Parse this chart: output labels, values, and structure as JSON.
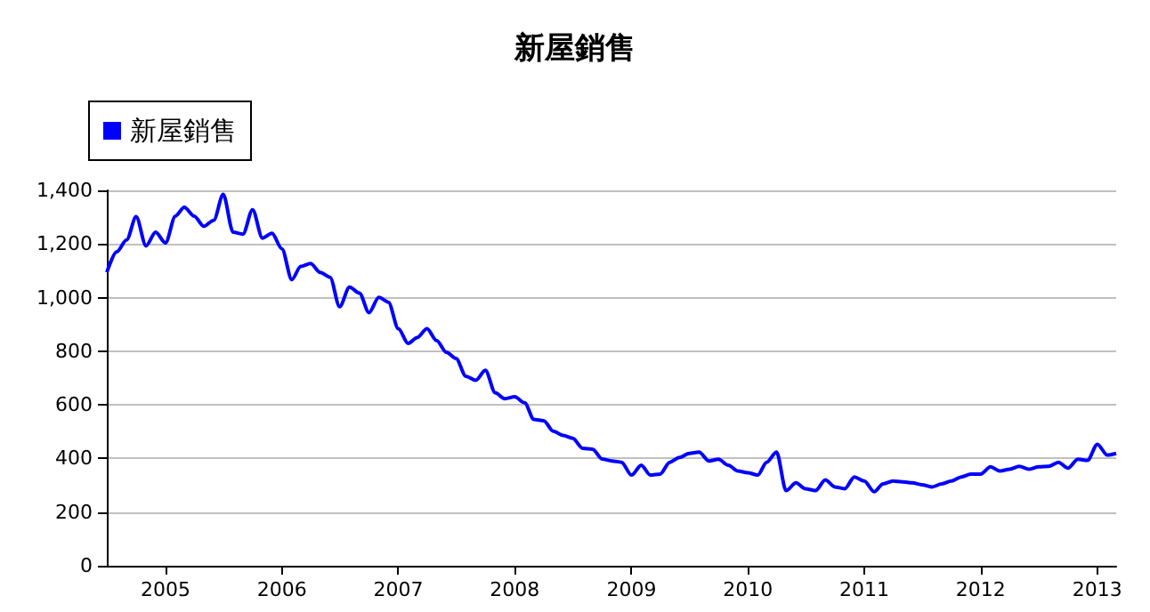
{
  "chart_data": {
    "type": "line",
    "title": "新屋銷售",
    "x": [
      "2004-07",
      "2004-08",
      "2004-09",
      "2004-10",
      "2004-11",
      "2004-12",
      "2005-01",
      "2005-02",
      "2005-03",
      "2005-04",
      "2005-05",
      "2005-06",
      "2005-07",
      "2005-08",
      "2005-09",
      "2005-10",
      "2005-11",
      "2005-12",
      "2006-01",
      "2006-02",
      "2006-03",
      "2006-04",
      "2006-05",
      "2006-06",
      "2006-07",
      "2006-08",
      "2006-09",
      "2006-10",
      "2006-11",
      "2006-12",
      "2007-01",
      "2007-02",
      "2007-03",
      "2007-04",
      "2007-05",
      "2007-06",
      "2007-07",
      "2007-08",
      "2007-09",
      "2007-10",
      "2007-11",
      "2007-12",
      "2008-01",
      "2008-02",
      "2008-03",
      "2008-04",
      "2008-05",
      "2008-06",
      "2008-07",
      "2008-08",
      "2008-09",
      "2008-10",
      "2008-11",
      "2008-12",
      "2009-01",
      "2009-02",
      "2009-03",
      "2009-04",
      "2009-05",
      "2009-06",
      "2009-07",
      "2009-08",
      "2009-09",
      "2009-10",
      "2009-11",
      "2009-12",
      "2010-01",
      "2010-02",
      "2010-03",
      "2010-04",
      "2010-05",
      "2010-06",
      "2010-07",
      "2010-08",
      "2010-09",
      "2010-10",
      "2010-11",
      "2010-12",
      "2011-01",
      "2011-02",
      "2011-03",
      "2011-04",
      "2011-05",
      "2011-06",
      "2011-07",
      "2011-08",
      "2011-09",
      "2011-10",
      "2011-11",
      "2011-12",
      "2012-01",
      "2012-02",
      "2012-03",
      "2012-04",
      "2012-05",
      "2012-06",
      "2012-07",
      "2012-08",
      "2012-09",
      "2012-10",
      "2012-11",
      "2012-12",
      "2013-01",
      "2013-02",
      "2013-03"
    ],
    "series": [
      {
        "name": "新屋銷售",
        "color": "#0000ff",
        "values": [
          1094,
          1171,
          1215,
          1302,
          1193,
          1244,
          1204,
          1304,
          1337,
          1304,
          1266,
          1288,
          1385,
          1244,
          1237,
          1328,
          1222,
          1240,
          1182,
          1067,
          1116,
          1127,
          1094,
          1076,
          966,
          1039,
          1017,
          944,
          1001,
          983,
          884,
          829,
          851,
          884,
          840,
          796,
          773,
          707,
          692,
          729,
          645,
          623,
          630,
          608,
          546,
          541,
          502,
          486,
          475,
          438,
          435,
          398,
          391,
          386,
          338,
          375,
          338,
          342,
          386,
          404,
          419,
          424,
          391,
          397,
          375,
          353,
          347,
          338,
          386,
          424,
          280,
          309,
          287,
          280,
          320,
          294,
          287,
          331,
          316,
          276,
          305,
          316,
          313,
          309,
          302,
          294,
          305,
          316,
          331,
          342,
          342,
          369,
          353,
          360,
          371,
          360,
          369,
          371,
          386,
          364,
          397,
          393,
          453,
          413,
          419
        ]
      }
    ],
    "xlim": [
      "2004-07",
      "2013-03"
    ],
    "xticks": [
      {
        "value": "2005",
        "label": "2005"
      },
      {
        "value": "2006",
        "label": "2006"
      },
      {
        "value": "2007",
        "label": "2007"
      },
      {
        "value": "2008",
        "label": "2008"
      },
      {
        "value": "2009",
        "label": "2009"
      },
      {
        "value": "2010",
        "label": "2010"
      },
      {
        "value": "2011",
        "label": "2011"
      },
      {
        "value": "2012",
        "label": "2012"
      },
      {
        "value": "2013",
        "label": "2013"
      }
    ],
    "ylim": [
      0,
      1400
    ],
    "yticks": [
      {
        "value": 0,
        "label": "0"
      },
      {
        "value": 200,
        "label": "200"
      },
      {
        "value": 400,
        "label": "400"
      },
      {
        "value": 600,
        "label": "600"
      },
      {
        "value": 800,
        "label": "800"
      },
      {
        "value": 1000,
        "label": "1,000"
      },
      {
        "value": 1200,
        "label": "1,200"
      },
      {
        "value": 1400,
        "label": "1,400"
      }
    ],
    "grid": "y",
    "legend": "top left",
    "marker": "none",
    "line_style": "solid"
  }
}
